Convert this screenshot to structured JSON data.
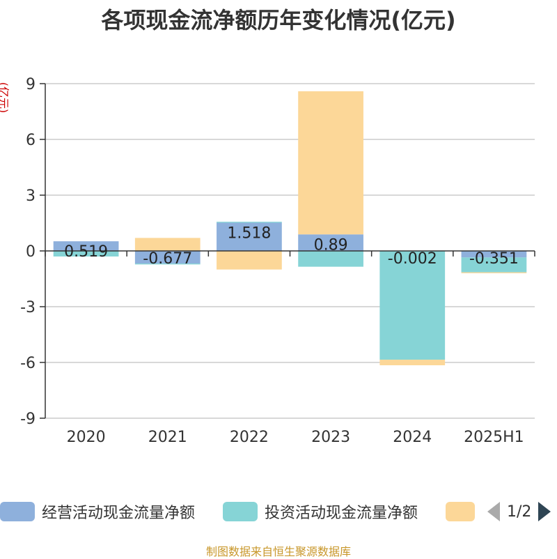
{
  "title": "各项现金流净额历年变化情况(亿元)",
  "unit_label": "(亿元)",
  "source": "制图数据来自恒生聚源数据库",
  "legend_page": "1/2",
  "colors": {
    "operating": "#8eb0dc",
    "investing": "#86d4d6",
    "financing": "#fcd798",
    "grid": "#cccccc",
    "axis": "#333333"
  },
  "chart_data": {
    "type": "bar",
    "stacked": true,
    "title": "各项现金流净额历年变化情况(亿元)",
    "ylabel": "(亿元)",
    "ylim": [
      -9,
      9
    ],
    "yticks": [
      9,
      6,
      3,
      0,
      -3,
      -6,
      -9
    ],
    "categories": [
      "2020",
      "2021",
      "2022",
      "2023",
      "2024",
      "2025H1"
    ],
    "series": [
      {
        "name": "经营活动现金流量净额",
        "color": "#8eb0dc",
        "values": [
          0.519,
          -0.677,
          1.518,
          0.89,
          -0.002,
          -0.351
        ],
        "labels": [
          "0.519",
          "-0.677",
          "1.518",
          "0.89",
          "-0.002",
          "-0.351"
        ]
      },
      {
        "name": "投资活动现金流量净额",
        "color": "#86d4d6",
        "values": [
          -0.3,
          -0.05,
          0.05,
          -0.85,
          -5.85,
          -0.8
        ]
      },
      {
        "name": "",
        "color": "#fcd798",
        "values": [
          0.0,
          0.7,
          -1.0,
          7.7,
          -0.3,
          -0.05
        ]
      }
    ],
    "grid": true,
    "legend_position": "bottom"
  }
}
